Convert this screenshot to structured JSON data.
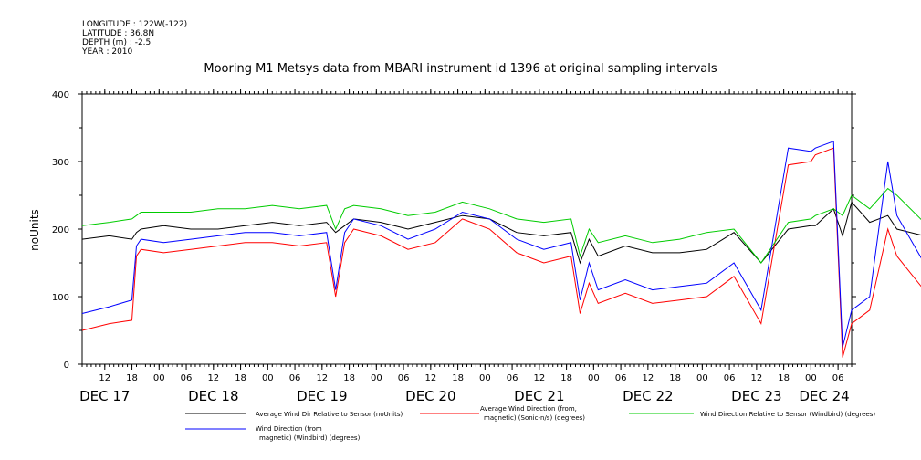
{
  "meta": {
    "longitude": "LONGITUDE : 122W(-122)",
    "latitude": "LATITUDE : 36.8N",
    "depth": "DEPTH (m) : -2.5",
    "year": "YEAR : 2010"
  },
  "chart_data": {
    "type": "line",
    "title": "Mooring M1 Metsys data from MBARI instrument id 1396 at original sampling intervals",
    "xlabel": "",
    "ylabel": "noUnits",
    "ylim": [
      0,
      400
    ],
    "xlim": [
      "2010-12-17T07:00",
      "2010-12-24T09:00"
    ],
    "yticks": [
      0,
      100,
      200,
      300,
      400
    ],
    "ytick_labels": [
      "0",
      "100",
      "200",
      "300",
      "400"
    ],
    "xtick_hour_labels": [
      "12",
      "18",
      "00",
      "06",
      "12",
      "18",
      "00",
      "06",
      "12",
      "18",
      "00",
      "06",
      "12",
      "18",
      "00",
      "06",
      "12",
      "18",
      "00",
      "06",
      "12",
      "18",
      "00",
      "06",
      "12",
      "18",
      "00",
      "06"
    ],
    "xtick_day_labels": [
      "DEC 17",
      "DEC 18",
      "DEC 19",
      "DEC 20",
      "DEC 21",
      "DEC 22",
      "DEC 23",
      "DEC 24"
    ],
    "x_hours_from_start": [
      0,
      6,
      11,
      12,
      13,
      18,
      24,
      30,
      36,
      42,
      48,
      54,
      56,
      58,
      60,
      66,
      72,
      78,
      84,
      90,
      96,
      102,
      108,
      110,
      112,
      114,
      120,
      126,
      132,
      138,
      144,
      150,
      156,
      161,
      162,
      166,
      168,
      170,
      174,
      178,
      180,
      186
    ],
    "series": [
      {
        "name": "Average Wind Dir Relative to Sensor (noUnits)",
        "color": "#000000",
        "values": [
          185,
          190,
          185,
          195,
          200,
          205,
          200,
          200,
          205,
          210,
          205,
          210,
          195,
          205,
          215,
          210,
          200,
          210,
          220,
          215,
          195,
          190,
          195,
          150,
          185,
          160,
          175,
          165,
          165,
          170,
          195,
          150,
          200,
          205,
          205,
          230,
          190,
          240,
          210,
          220,
          200,
          190
        ]
      },
      {
        "name": "Average Wind Direction (from, magnetic) (Sonic-n/s) (degrees)",
        "color": "#ff0000",
        "values": [
          50,
          60,
          65,
          160,
          170,
          165,
          170,
          175,
          180,
          180,
          175,
          180,
          100,
          180,
          200,
          190,
          170,
          180,
          215,
          200,
          165,
          150,
          160,
          75,
          120,
          90,
          105,
          90,
          95,
          100,
          130,
          60,
          295,
          300,
          310,
          320,
          10,
          60,
          80,
          200,
          160,
          110
        ]
      },
      {
        "name": "Wind Direction Relative to Sensor (Windbird) (degrees)",
        "color": "#00cc00",
        "values": [
          205,
          210,
          215,
          220,
          225,
          225,
          225,
          230,
          230,
          235,
          230,
          235,
          200,
          230,
          235,
          230,
          220,
          225,
          240,
          230,
          215,
          210,
          215,
          160,
          200,
          180,
          190,
          180,
          185,
          195,
          200,
          150,
          210,
          215,
          220,
          230,
          220,
          250,
          230,
          260,
          250,
          210
        ]
      },
      {
        "name": "Wind Direction (from magnetic) (Windbird) (degrees)",
        "color": "#0000ff",
        "values": [
          75,
          85,
          95,
          175,
          185,
          180,
          185,
          190,
          195,
          195,
          190,
          195,
          110,
          195,
          215,
          205,
          185,
          200,
          225,
          215,
          185,
          170,
          180,
          95,
          150,
          110,
          125,
          110,
          115,
          120,
          150,
          80,
          320,
          315,
          320,
          330,
          25,
          80,
          100,
          300,
          220,
          150
        ]
      }
    ]
  },
  "legend": {
    "black": "Average Wind Dir Relative to Sensor (noUnits)",
    "red_line1": "Average Wind Direction (from,",
    "red_line2": "magnetic) (Sonic-n/s) (degrees)",
    "green": "Wind Direction Relative to Sensor (Windbird) (degrees)",
    "blue_line1": "Wind Direction (from",
    "blue_line2": "magnetic) (Windbird) (degrees)"
  }
}
